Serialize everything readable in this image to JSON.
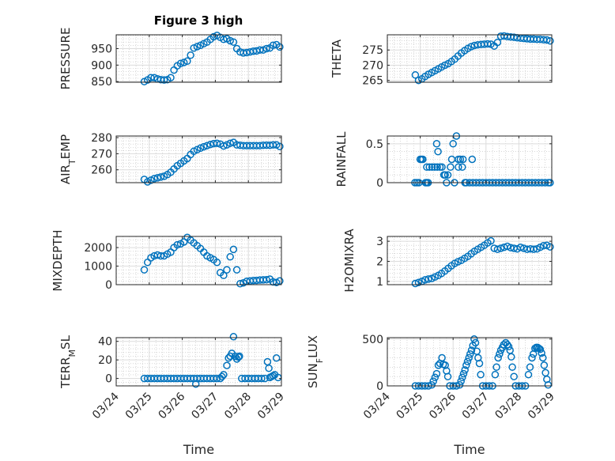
{
  "figure": {
    "title": "Figure 3 high",
    "marker_color": "#0072BD"
  },
  "chart_data": {
    "type": "scatter",
    "layout": "4x2 subplots",
    "grid": "major+minor",
    "x_axis": {
      "label": "Time",
      "unit": "days since 03/24",
      "range": [
        0,
        5
      ],
      "ticks": [
        0,
        1,
        2,
        3,
        4,
        5
      ],
      "tick_labels": [
        "03/24",
        "03/25",
        "03/26",
        "03/27",
        "03/28",
        "03/29"
      ]
    },
    "x": [
      0.85,
      0.95,
      1.05,
      1.15,
      1.25,
      1.35,
      1.45,
      1.55,
      1.65,
      1.75,
      1.85,
      1.95,
      2.05,
      2.15,
      2.25,
      2.35,
      2.45,
      2.55,
      2.65,
      2.75,
      2.85,
      2.95,
      3.05,
      3.15,
      3.25,
      3.35,
      3.45,
      3.55,
      3.65,
      3.75,
      3.85,
      3.95,
      4.05,
      4.15,
      4.25,
      4.35,
      4.45,
      4.55,
      4.65,
      4.75,
      4.85,
      4.95
    ],
    "panels": [
      {
        "name": "PRESSURE",
        "ylabel": {
          "main": "PRESSURE",
          "sub": "",
          "rest": ""
        },
        "ylim": [
          848,
          992
        ],
        "yticks": [
          850,
          900,
          950
        ],
        "ytick_labels": [
          "850",
          "900",
          "950"
        ],
        "y": [
          850,
          855,
          862,
          862,
          858,
          856,
          855,
          856,
          862,
          885,
          898,
          905,
          908,
          912,
          930,
          952,
          956,
          960,
          965,
          970,
          978,
          986,
          990,
          984,
          978,
          980,
          974,
          970,
          950,
          940,
          937,
          938,
          940,
          942,
          943,
          946,
          946,
          950,
          952,
          960,
          962,
          955
        ]
      },
      {
        "name": "THETA",
        "ylabel": {
          "main": "THETA",
          "sub": "",
          "rest": ""
        },
        "ylim": [
          264.4,
          280
        ],
        "yticks": [
          265,
          270,
          275
        ],
        "ytick_labels": [
          "265",
          "270",
          "275"
        ],
        "y": [
          266.8,
          265,
          265.5,
          266.3,
          267,
          267.6,
          268.2,
          268.8,
          269.4,
          270,
          270.5,
          271.2,
          272,
          273,
          274,
          274.8,
          275.5,
          276.1,
          276.5,
          276.7,
          276.8,
          276.9,
          277,
          276.9,
          276.3,
          277.5,
          279.5,
          279.6,
          279.4,
          279.3,
          279.2,
          279,
          278.9,
          278.8,
          278.7,
          278.6,
          278.6,
          278.5,
          278.5,
          278.4,
          278.3,
          278
        ]
      },
      {
        "name": "AIR_TEMP",
        "ylabel": {
          "main": "AIR",
          "sub": "T",
          "rest": "EMP"
        },
        "ylim": [
          252,
          281
        ],
        "yticks": [
          260,
          270,
          280
        ],
        "ytick_labels": [
          "260",
          "270",
          "280"
        ],
        "y": [
          254,
          252.5,
          253.5,
          254.5,
          255,
          255.5,
          256,
          257,
          258.5,
          260.5,
          262.5,
          264,
          265.5,
          267,
          269.5,
          271.5,
          272.5,
          273.5,
          274.3,
          275,
          275.7,
          276.3,
          276.5,
          276,
          274.8,
          275.5,
          276.5,
          277,
          275.5,
          275.2,
          275,
          275,
          275,
          275,
          275,
          275,
          275.2,
          275.3,
          275.2,
          275.5,
          275.5,
          274.5
        ]
      },
      {
        "name": "RAINFALL",
        "ylabel": {
          "main": "RAINFALL",
          "sub": "",
          "rest": ""
        },
        "ylim": [
          0,
          0.6
        ],
        "yticks": [
          0,
          0.5
        ],
        "ytick_labels": [
          "0",
          "0.5"
        ],
        "points": [
          [
            0.84,
            0
          ],
          [
            0.9,
            0
          ],
          [
            0.96,
            0
          ],
          [
            1.0,
            0.3
          ],
          [
            1.04,
            0.3
          ],
          [
            1.08,
            0.3
          ],
          [
            1.16,
            0
          ],
          [
            1.2,
            0
          ],
          [
            1.24,
            0
          ],
          [
            1.2,
            0.2
          ],
          [
            1.28,
            0.2
          ],
          [
            1.36,
            0.2
          ],
          [
            1.44,
            0.2
          ],
          [
            1.5,
            0.5
          ],
          [
            1.54,
            0.4
          ],
          [
            1.52,
            0.2
          ],
          [
            1.6,
            0.2
          ],
          [
            1.66,
            0.2
          ],
          [
            1.72,
            0.1
          ],
          [
            1.76,
            0.1
          ],
          [
            1.8,
            0
          ],
          [
            1.84,
            0.1
          ],
          [
            1.92,
            0.2
          ],
          [
            1.96,
            0.3
          ],
          [
            2.0,
            0.5
          ],
          [
            2.1,
            0.6
          ],
          [
            2.04,
            0
          ],
          [
            2.16,
            0.2
          ],
          [
            2.16,
            0.3
          ],
          [
            2.22,
            0.3
          ],
          [
            2.28,
            0.2
          ],
          [
            2.3,
            0.3
          ],
          [
            2.58,
            0.3
          ],
          [
            2.36,
            0
          ],
          [
            2.4,
            0
          ],
          [
            2.5,
            0
          ],
          [
            2.6,
            0
          ],
          [
            2.7,
            0
          ],
          [
            2.8,
            0
          ],
          [
            2.9,
            0
          ],
          [
            3.0,
            0
          ],
          [
            3.1,
            0
          ],
          [
            3.2,
            0
          ],
          [
            3.3,
            0
          ],
          [
            3.4,
            0
          ],
          [
            3.5,
            0
          ],
          [
            3.6,
            0
          ],
          [
            3.7,
            0
          ],
          [
            3.8,
            0
          ],
          [
            3.9,
            0
          ],
          [
            4.0,
            0
          ],
          [
            4.1,
            0
          ],
          [
            4.2,
            0
          ],
          [
            4.3,
            0
          ],
          [
            4.4,
            0
          ],
          [
            4.5,
            0
          ],
          [
            4.6,
            0
          ],
          [
            4.7,
            0
          ],
          [
            4.8,
            0
          ],
          [
            4.9,
            0
          ],
          [
            4.95,
            0
          ]
        ]
      },
      {
        "name": "MIXDEPTH",
        "ylabel": {
          "main": "MIXDEPTH",
          "sub": "",
          "rest": ""
        },
        "ylim": [
          0,
          2600
        ],
        "yticks": [
          0,
          1000,
          2000
        ],
        "ytick_labels": [
          "0",
          "1000",
          "2000"
        ],
        "y": [
          800,
          1200,
          1450,
          1550,
          1600,
          1550,
          1550,
          1650,
          1750,
          2000,
          2150,
          2200,
          2300,
          2550,
          2400,
          2250,
          2100,
          1950,
          1750,
          1550,
          1450,
          1350,
          1200,
          650,
          500,
          800,
          1500,
          1900,
          800,
          50,
          100,
          180,
          200,
          220,
          230,
          250,
          260,
          270,
          300,
          150,
          120,
          200
        ]
      },
      {
        "name": "H2OMIXRA",
        "ylabel": {
          "main": "H2OMIXRA",
          "sub": "",
          "rest": ""
        },
        "ylim": [
          0.84,
          3.24
        ],
        "yticks": [
          1,
          2,
          3
        ],
        "ytick_labels": [
          "1",
          "2",
          "3"
        ],
        "y": [
          0.9,
          0.95,
          1.0,
          1.08,
          1.12,
          1.15,
          1.22,
          1.3,
          1.4,
          1.52,
          1.65,
          1.78,
          1.9,
          1.98,
          2.05,
          2.15,
          2.25,
          2.38,
          2.5,
          2.6,
          2.7,
          2.8,
          2.92,
          3.02,
          2.65,
          2.6,
          2.65,
          2.7,
          2.75,
          2.68,
          2.65,
          2.62,
          2.7,
          2.65,
          2.6,
          2.62,
          2.6,
          2.62,
          2.7,
          2.78,
          2.8,
          2.72
        ]
      },
      {
        "name": "TERR_MSL",
        "ylabel": {
          "main": "TERR",
          "sub": "M",
          "rest": "SL"
        },
        "ylim": [
          -8,
          44
        ],
        "yticks": [
          0,
          20,
          40
        ],
        "ytick_labels": [
          "0",
          "20",
          "40"
        ],
        "points": [
          [
            0.85,
            0
          ],
          [
            0.95,
            0
          ],
          [
            1.05,
            0
          ],
          [
            1.15,
            0
          ],
          [
            1.25,
            0
          ],
          [
            1.35,
            0
          ],
          [
            1.45,
            0
          ],
          [
            1.55,
            0
          ],
          [
            1.65,
            0
          ],
          [
            1.75,
            0
          ],
          [
            1.85,
            0
          ],
          [
            1.95,
            0
          ],
          [
            2.05,
            0
          ],
          [
            2.15,
            0
          ],
          [
            2.25,
            0
          ],
          [
            2.35,
            0
          ],
          [
            2.45,
            0
          ],
          [
            2.55,
            0
          ],
          [
            2.65,
            0
          ],
          [
            2.75,
            0
          ],
          [
            2.85,
            0
          ],
          [
            2.95,
            0
          ],
          [
            3.05,
            0
          ],
          [
            3.15,
            0
          ],
          [
            2.41,
            -6
          ],
          [
            3.2,
            2
          ],
          [
            3.25,
            4
          ],
          [
            3.35,
            14
          ],
          [
            3.4,
            22
          ],
          [
            3.45,
            24
          ],
          [
            3.5,
            27
          ],
          [
            3.55,
            45
          ],
          [
            3.6,
            24
          ],
          [
            3.65,
            21
          ],
          [
            3.7,
            23
          ],
          [
            3.73,
            24
          ],
          [
            3.8,
            0
          ],
          [
            3.9,
            0
          ],
          [
            4.0,
            0
          ],
          [
            4.1,
            0
          ],
          [
            4.2,
            0
          ],
          [
            4.3,
            0
          ],
          [
            4.4,
            0
          ],
          [
            4.5,
            0
          ],
          [
            4.58,
            18
          ],
          [
            4.62,
            11
          ],
          [
            4.65,
            1
          ],
          [
            4.7,
            2
          ],
          [
            4.75,
            3
          ],
          [
            4.8,
            4
          ],
          [
            4.85,
            22
          ],
          [
            4.9,
            1
          ]
        ]
      },
      {
        "name": "SUN_FLUX",
        "ylabel": {
          "main": "SUN",
          "sub": "F",
          "rest": "LUX"
        },
        "ylim": [
          0,
          515
        ],
        "yticks": [
          0,
          500
        ],
        "ytick_labels": [
          "0",
          "500"
        ],
        "points": [
          [
            0.85,
            0
          ],
          [
            0.95,
            0
          ],
          [
            1.05,
            0
          ],
          [
            1.15,
            0
          ],
          [
            1.25,
            0
          ],
          [
            1.35,
            10
          ],
          [
            1.4,
            50
          ],
          [
            1.45,
            90
          ],
          [
            1.5,
            130
          ],
          [
            1.55,
            220
          ],
          [
            1.6,
            240
          ],
          [
            1.66,
            300
          ],
          [
            1.7,
            230
          ],
          [
            1.76,
            220
          ],
          [
            1.8,
            160
          ],
          [
            1.84,
            100
          ],
          [
            1.9,
            0
          ],
          [
            2.0,
            0
          ],
          [
            2.1,
            0
          ],
          [
            2.2,
            10
          ],
          [
            2.24,
            50
          ],
          [
            2.28,
            90
          ],
          [
            2.32,
            130
          ],
          [
            2.36,
            170
          ],
          [
            2.4,
            220
          ],
          [
            2.44,
            260
          ],
          [
            2.48,
            300
          ],
          [
            2.52,
            340
          ],
          [
            2.56,
            380
          ],
          [
            2.6,
            430
          ],
          [
            2.64,
            500
          ],
          [
            2.68,
            460
          ],
          [
            2.72,
            370
          ],
          [
            2.76,
            300
          ],
          [
            2.8,
            240
          ],
          [
            2.84,
            120
          ],
          [
            2.9,
            0
          ],
          [
            3.0,
            0
          ],
          [
            3.1,
            0
          ],
          [
            3.2,
            0
          ],
          [
            3.28,
            120
          ],
          [
            3.32,
            200
          ],
          [
            3.37,
            300
          ],
          [
            3.41,
            340
          ],
          [
            3.45,
            380
          ],
          [
            3.5,
            410
          ],
          [
            3.54,
            440
          ],
          [
            3.6,
            460
          ],
          [
            3.65,
            440
          ],
          [
            3.69,
            420
          ],
          [
            3.73,
            380
          ],
          [
            3.77,
            310
          ],
          [
            3.8,
            200
          ],
          [
            3.85,
            100
          ],
          [
            3.9,
            0
          ],
          [
            4.0,
            0
          ],
          [
            4.1,
            0
          ],
          [
            4.2,
            0
          ],
          [
            4.29,
            120
          ],
          [
            4.34,
            200
          ],
          [
            4.4,
            300
          ],
          [
            4.44,
            340
          ],
          [
            4.49,
            400
          ],
          [
            4.53,
            410
          ],
          [
            4.57,
            410
          ],
          [
            4.61,
            400
          ],
          [
            4.65,
            390
          ],
          [
            4.69,
            350
          ],
          [
            4.73,
            300
          ],
          [
            4.77,
            220
          ],
          [
            4.81,
            140
          ],
          [
            4.85,
            70
          ],
          [
            4.89,
            10
          ]
        ]
      }
    ]
  }
}
